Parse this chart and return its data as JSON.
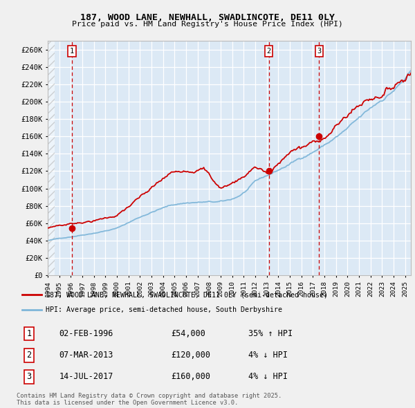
{
  "title": "187, WOOD LANE, NEWHALL, SWADLINCOTE, DE11 0LY",
  "subtitle": "Price paid vs. HM Land Registry's House Price Index (HPI)",
  "legend_line1": "187, WOOD LANE, NEWHALL, SWADLINCOTE, DE11 0LY (semi-detached house)",
  "legend_line2": "HPI: Average price, semi-detached house, South Derbyshire",
  "footer": "Contains HM Land Registry data © Crown copyright and database right 2025.\nThis data is licensed under the Open Government Licence v3.0.",
  "transactions": [
    {
      "label": "1",
      "date": "02-FEB-1996",
      "price": "£54,000",
      "hpi_diff": "35% ↑ HPI"
    },
    {
      "label": "2",
      "date": "07-MAR-2013",
      "price": "£120,000",
      "hpi_diff": "4% ↓ HPI"
    },
    {
      "label": "3",
      "date": "14-JUL-2017",
      "price": "£160,000",
      "hpi_diff": "4% ↓ HPI"
    }
  ],
  "transaction_dates_num": [
    1996.09,
    2013.18,
    2017.54
  ],
  "transaction_prices": [
    54000,
    120000,
    160000
  ],
  "ylim": [
    0,
    270000
  ],
  "ytick_vals": [
    0,
    20000,
    40000,
    60000,
    80000,
    100000,
    120000,
    140000,
    160000,
    180000,
    200000,
    220000,
    240000,
    260000
  ],
  "ytick_labels": [
    "£0",
    "£20K",
    "£40K",
    "£60K",
    "£80K",
    "£100K",
    "£120K",
    "£140K",
    "£160K",
    "£180K",
    "£200K",
    "£220K",
    "£240K",
    "£260K"
  ],
  "red_color": "#cc0000",
  "blue_color": "#7eb6d9",
  "plot_bg": "#dce9f5",
  "grid_color": "#ffffff",
  "fig_bg": "#f0f0f0"
}
